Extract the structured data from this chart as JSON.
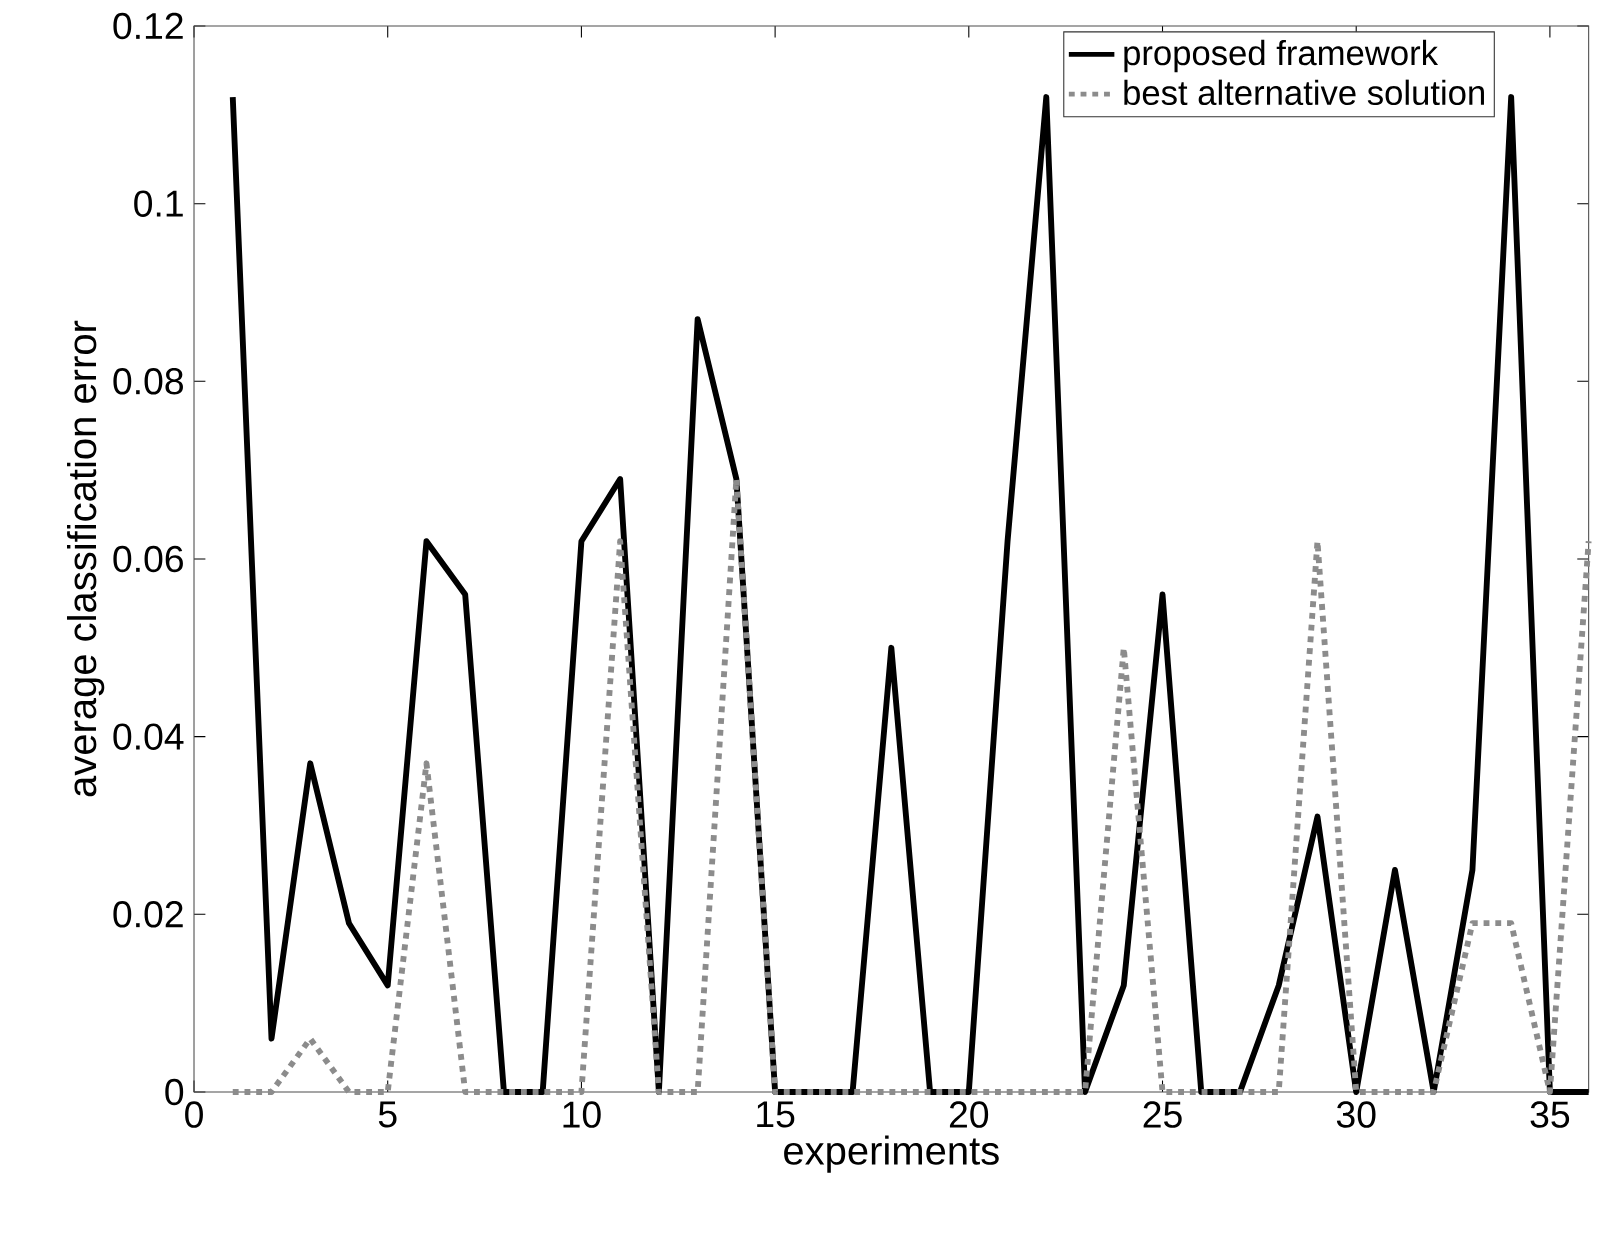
{
  "chart_data": {
    "type": "line",
    "xlabel": "experiments",
    "ylabel": "average classification error",
    "x": [
      1,
      2,
      3,
      4,
      5,
      6,
      7,
      8,
      9,
      10,
      11,
      12,
      13,
      14,
      15,
      16,
      17,
      18,
      19,
      20,
      21,
      22,
      23,
      24,
      25,
      26,
      27,
      28,
      29,
      30,
      31,
      32,
      33,
      34,
      35,
      36
    ],
    "series": [
      {
        "name": "proposed framework",
        "color": "#000000",
        "line_style": "solid",
        "values": [
          0.112,
          0.006,
          0.037,
          0.019,
          0.012,
          0.062,
          0.056,
          0,
          0,
          0.062,
          0.069,
          0,
          0.087,
          0.069,
          0,
          0,
          0,
          0.05,
          0,
          0,
          0.062,
          0.112,
          0,
          0.012,
          0.056,
          0,
          0,
          0.012,
          0.031,
          0,
          0.025,
          0,
          0.025,
          0.112,
          0,
          0
        ]
      },
      {
        "name": "best alternative solution",
        "color": "#8c8c8c",
        "line_style": "dotted",
        "values": [
          0,
          0,
          0.006,
          0,
          0,
          0.037,
          0,
          0,
          0,
          0,
          0.062,
          0,
          0,
          0.069,
          0,
          0,
          0,
          0,
          0,
          0,
          0,
          0,
          0,
          0.05,
          0,
          0,
          0,
          0,
          0.062,
          0,
          0,
          0,
          0.019,
          0.019,
          0,
          0.062
        ]
      }
    ],
    "xlim": [
      0,
      36
    ],
    "ylim": [
      0,
      0.12
    ],
    "xticks": [
      0,
      5,
      10,
      15,
      20,
      25,
      30,
      35
    ],
    "yticks": [
      0,
      0.02,
      0.04,
      0.06,
      0.08,
      0.1,
      0.12
    ],
    "grid": false,
    "legend": "top",
    "marker": "none"
  }
}
